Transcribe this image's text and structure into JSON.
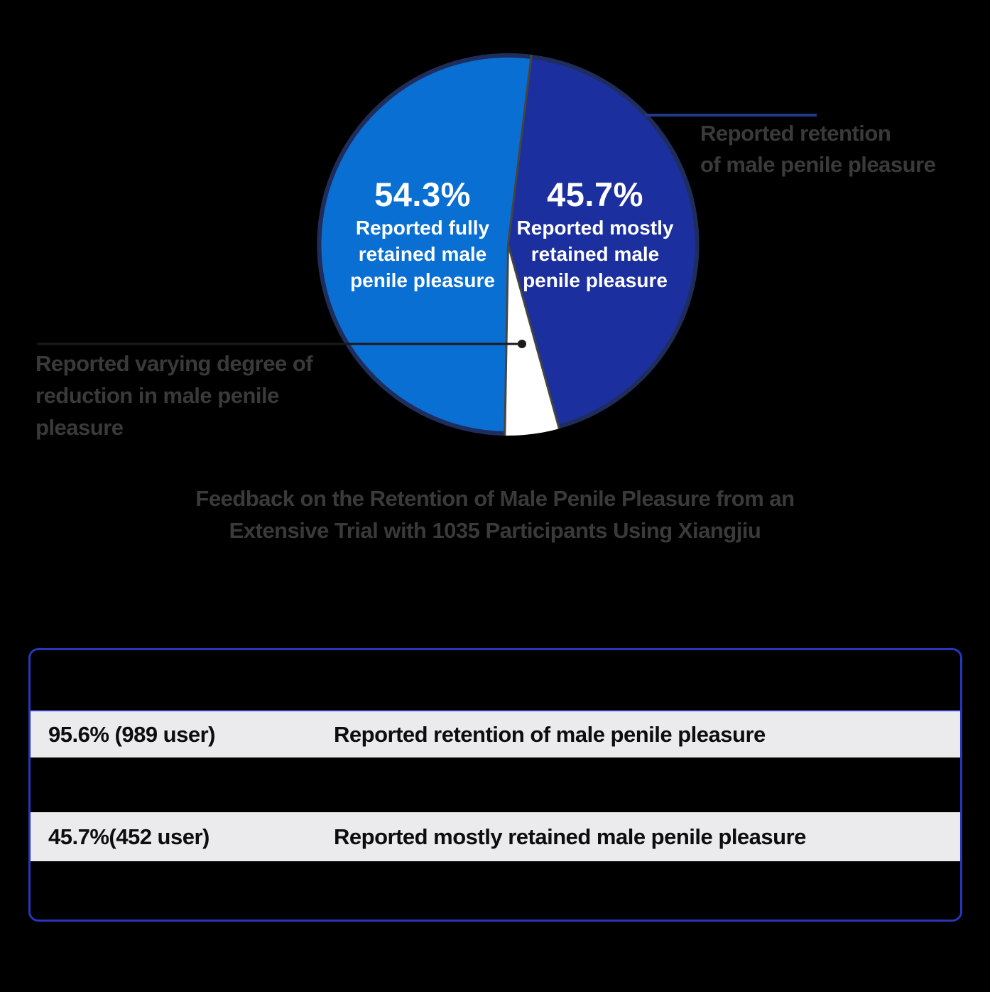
{
  "chart_data": {
    "type": "pie",
    "title": "Feedback on the Retention of Male Penile Pleasure from an Extensive Trial with 1035 Participants Using Xiangjiu",
    "start_angle_deg": 7,
    "rim_color": "#1f2d5c",
    "divider_color": "#46463f",
    "divider_angles_deg": [
      7,
      164.5,
      181
    ],
    "slices": [
      {
        "name": "mostly-retained",
        "label": "Reported mostly retained male penile pleasure",
        "label_lines": [
          "Reported mostly",
          "retained male",
          "penile pleasure"
        ],
        "value_label": "45.7%",
        "value_pct": 45.7,
        "sweep_deg": 157.5,
        "color": "#1c2f9e",
        "rim": true
      },
      {
        "name": "reduction",
        "label": "Reported varying degree of reduction in male penile pleasure",
        "label_lines": [],
        "value_label": "",
        "value_pct": 4.4,
        "sweep_deg": 16.5,
        "color": "#ffffff",
        "rim": false
      },
      {
        "name": "fully-retained",
        "label": "Reported fully retained male penile pleasure",
        "label_lines": [
          "Reported fully",
          "retained male",
          "penile pleasure"
        ],
        "value_label": "54.3%",
        "value_pct": 54.3,
        "sweep_deg": 186.0,
        "color": "#0a6fd2",
        "rim": true
      }
    ]
  },
  "callouts": {
    "retention": {
      "lines": [
        "Reported retention",
        "of male penile pleasure"
      ],
      "line_color": "#1e3a8c"
    },
    "reduction": {
      "lines": [
        "Reported varying degree of",
        "reduction in male penile",
        "pleasure"
      ],
      "line_color": "#1a1a1a"
    }
  },
  "caption": {
    "lines": [
      "Feedback on the Retention of Male Penile Pleasure from an",
      "Extensive Trial with 1035 Participants Using Xiangjiu"
    ]
  },
  "table": {
    "border_color": "#2837bb",
    "row_bg": "#ebebed",
    "rows": [
      {
        "stat": "95.6% (989 user)",
        "desc": "Reported retention of male penile pleasure"
      },
      {
        "stat": "45.7%(452 user)",
        "desc": "Reported mostly retained male penile pleasure"
      }
    ]
  }
}
